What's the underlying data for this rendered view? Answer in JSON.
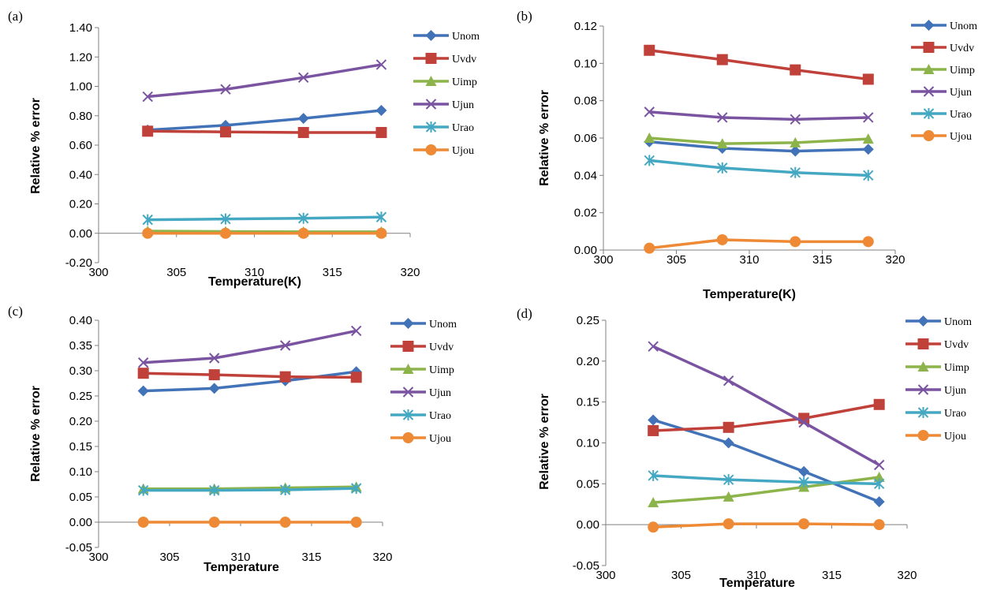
{
  "chart_data": [
    {
      "panel": "(a)",
      "type": "line",
      "xlabel": "Temperature(K)",
      "ylabel": "Relative % error",
      "xlim": [
        300,
        320
      ],
      "ylim": [
        -0.2,
        1.4
      ],
      "xticks": [
        300,
        305,
        310,
        315,
        320
      ],
      "xtick_labels": [
        "300",
        "305",
        "310",
        "315",
        "320"
      ],
      "yticks": [
        -0.2,
        0,
        0.2,
        0.4,
        0.6,
        0.8,
        1.0,
        1.2,
        1.4
      ],
      "ytick_labels": [
        "-0.20",
        "0.00",
        "0.20",
        "0.40",
        "0.60",
        "0.80",
        "1.00",
        "1.20",
        "1.40"
      ],
      "x": [
        303.15,
        308.15,
        313.15,
        318.15
      ],
      "series": [
        {
          "name": "Unom",
          "values": [
            0.703,
            0.735,
            0.782,
            0.836
          ]
        },
        {
          "name": "Uvdv",
          "values": [
            0.695,
            0.69,
            0.686,
            0.686
          ]
        },
        {
          "name": "Uimp",
          "values": [
            0.015,
            0.012,
            0.01,
            0.01
          ]
        },
        {
          "name": "Ujun",
          "values": [
            0.93,
            0.98,
            1.06,
            1.148
          ]
        },
        {
          "name": "Urao",
          "values": [
            0.092,
            0.097,
            0.102,
            0.11
          ]
        },
        {
          "name": "Ujou",
          "values": [
            0.0,
            0.0,
            0.0,
            0.0
          ]
        }
      ],
      "grid": false,
      "legend": "right"
    },
    {
      "panel": "(b)",
      "type": "line",
      "xlabel": "Temperature(K)",
      "ylabel": "Relative % error",
      "xlim": [
        300,
        320
      ],
      "ylim": [
        0,
        0.12
      ],
      "xticks": [
        300,
        305,
        310,
        315,
        320
      ],
      "xtick_labels": [
        "300",
        "305",
        "310",
        "315",
        "320"
      ],
      "yticks": [
        0,
        0.02,
        0.04,
        0.06,
        0.08,
        0.1,
        0.12
      ],
      "ytick_labels": [
        "0.00",
        "0.02",
        "0.04",
        "0.06",
        "0.08",
        "0.10",
        "0.12"
      ],
      "x": [
        303.15,
        308.15,
        313.15,
        318.15
      ],
      "series": [
        {
          "name": "Unom",
          "values": [
            0.058,
            0.0545,
            0.053,
            0.054
          ]
        },
        {
          "name": "Uvdv",
          "values": [
            0.107,
            0.102,
            0.0965,
            0.0915
          ]
        },
        {
          "name": "Uimp",
          "values": [
            0.06,
            0.057,
            0.0575,
            0.0595
          ]
        },
        {
          "name": "Ujun",
          "values": [
            0.074,
            0.071,
            0.07,
            0.071
          ]
        },
        {
          "name": "Urao",
          "values": [
            0.048,
            0.044,
            0.0415,
            0.04
          ]
        },
        {
          "name": "Ujou",
          "values": [
            0.001,
            0.0055,
            0.0045,
            0.0045
          ]
        }
      ],
      "grid": false,
      "legend": "right"
    },
    {
      "panel": "(c)",
      "type": "line",
      "xlabel": "Temperature",
      "ylabel": "Relative % error",
      "xlim": [
        300,
        320
      ],
      "ylim": [
        -0.05,
        0.4
      ],
      "xticks": [
        300,
        305,
        310,
        315,
        320
      ],
      "xtick_labels": [
        "300",
        "305",
        "310",
        "315",
        "320"
      ],
      "yticks": [
        -0.05,
        0,
        0.05,
        0.1,
        0.15,
        0.2,
        0.25,
        0.3,
        0.35,
        0.4
      ],
      "ytick_labels": [
        "-0.05",
        "0.00",
        "0.05",
        "0.10",
        "0.15",
        "0.20",
        "0.25",
        "0.30",
        "0.35",
        "0.40"
      ],
      "x": [
        303.15,
        308.15,
        313.15,
        318.15
      ],
      "series": [
        {
          "name": "Unom",
          "values": [
            0.26,
            0.265,
            0.28,
            0.298
          ]
        },
        {
          "name": "Uvdv",
          "values": [
            0.295,
            0.292,
            0.288,
            0.287
          ]
        },
        {
          "name": "Uimp",
          "values": [
            0.066,
            0.066,
            0.068,
            0.07
          ]
        },
        {
          "name": "Ujun",
          "values": [
            0.316,
            0.325,
            0.35,
            0.379
          ]
        },
        {
          "name": "Urao",
          "values": [
            0.063,
            0.063,
            0.064,
            0.067
          ]
        },
        {
          "name": "Ujou",
          "values": [
            0.0,
            0.0,
            0.0,
            0.0
          ]
        }
      ],
      "grid": false,
      "legend": "right"
    },
    {
      "panel": "(d)",
      "type": "line",
      "xlabel": "Temperature",
      "ylabel": "Relative % error",
      "xlim": [
        300,
        320
      ],
      "ylim": [
        -0.05,
        0.25
      ],
      "xticks": [
        300,
        305,
        310,
        315,
        320
      ],
      "xtick_labels": [
        "300",
        "305",
        "310",
        "315",
        "320"
      ],
      "yticks": [
        -0.05,
        0,
        0.05,
        0.1,
        0.15,
        0.2,
        0.25
      ],
      "ytick_labels": [
        "-0.05",
        "0.00",
        "0.05",
        "0.10",
        "0.15",
        "0.20",
        "0.25"
      ],
      "x": [
        303.15,
        308.15,
        313.15,
        318.15
      ],
      "series": [
        {
          "name": "Unom",
          "values": [
            0.128,
            0.1,
            0.065,
            0.028
          ]
        },
        {
          "name": "Uvdv",
          "values": [
            0.115,
            0.119,
            0.13,
            0.147
          ]
        },
        {
          "name": "Uimp",
          "values": [
            0.027,
            0.034,
            0.046,
            0.058
          ]
        },
        {
          "name": "Ujun",
          "values": [
            0.218,
            0.176,
            0.125,
            0.073
          ]
        },
        {
          "name": "Urao",
          "values": [
            0.06,
            0.055,
            0.052,
            0.05
          ]
        },
        {
          "name": "Ujou",
          "values": [
            -0.003,
            0.001,
            0.001,
            0.0
          ]
        }
      ],
      "grid": false,
      "legend": "right"
    }
  ],
  "series_styles": [
    {
      "name": "Unom",
      "color": "#4272b8",
      "marker": "diamond"
    },
    {
      "name": "Uvdv",
      "color": "#c0403a",
      "marker": "square"
    },
    {
      "name": "Uimp",
      "color": "#8db44b",
      "marker": "triangle"
    },
    {
      "name": "Ujun",
      "color": "#7a54a1",
      "marker": "x"
    },
    {
      "name": "Urao",
      "color": "#45a8c2",
      "marker": "asterisk"
    },
    {
      "name": "Ujou",
      "color": "#ee8a35",
      "marker": "circle"
    }
  ]
}
